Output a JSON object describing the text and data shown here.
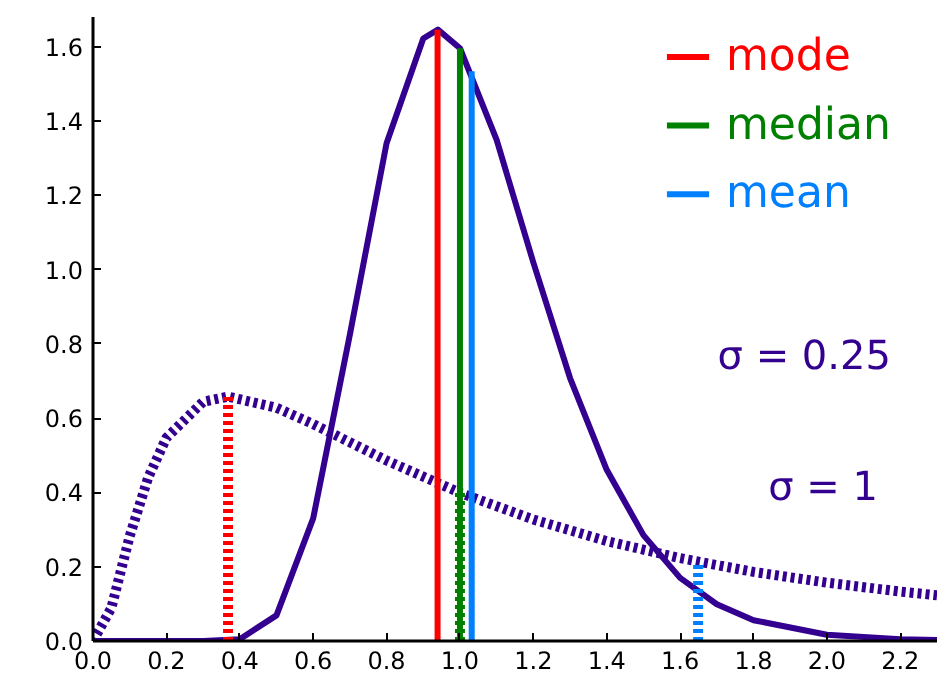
{
  "chart_data": {
    "type": "line",
    "xlim": [
      0,
      2.3
    ],
    "ylim": [
      0,
      1.68
    ],
    "xticks": [
      {
        "value": 0,
        "label": "0.0"
      },
      {
        "value": 0.2,
        "label": "0.2"
      },
      {
        "value": 0.4,
        "label": "0.4"
      },
      {
        "value": 0.6,
        "label": "0.6"
      },
      {
        "value": 0.8,
        "label": "0.8"
      },
      {
        "value": 1.0,
        "label": "1.0"
      },
      {
        "value": 1.2,
        "label": "1.2"
      },
      {
        "value": 1.4,
        "label": "1.4"
      },
      {
        "value": 1.6,
        "label": "1.6"
      },
      {
        "value": 1.8,
        "label": "1.8"
      },
      {
        "value": 2.0,
        "label": "2.0"
      },
      {
        "value": 2.2,
        "label": "2.2"
      }
    ],
    "yticks": [
      {
        "value": 0,
        "label": "0.0"
      },
      {
        "value": 0.2,
        "label": "0.2"
      },
      {
        "value": 0.4,
        "label": "0.4"
      },
      {
        "value": 0.6,
        "label": "0.6"
      },
      {
        "value": 0.8,
        "label": "0.8"
      },
      {
        "value": 1.0,
        "label": "1.0"
      },
      {
        "value": 1.2,
        "label": "1.2"
      },
      {
        "value": 1.4,
        "label": "1.4"
      },
      {
        "value": 1.6,
        "label": "1.6"
      }
    ],
    "grid": false,
    "legend": "top right",
    "series": [
      {
        "color": "#33008f",
        "line_style": "solid",
        "x": [
          0,
          0.3,
          0.4,
          0.5,
          0.6,
          0.7,
          0.8,
          0.9,
          0.94,
          1.0,
          1.1,
          1.2,
          1.3,
          1.4,
          1.5,
          1.6,
          1.7,
          1.8,
          2.0,
          2.2,
          2.3
        ],
        "values": [
          0,
          0,
          0.005,
          0.069,
          0.33,
          0.825,
          1.34,
          1.622,
          1.646,
          1.596,
          1.349,
          1.019,
          0.708,
          0.461,
          0.285,
          0.17,
          0.099,
          0.056,
          0.017,
          0.005,
          0.003
        ]
      },
      {
        "color": "#33008f",
        "line_style": "dotted",
        "x": [
          0,
          0.05,
          0.1,
          0.15,
          0.2,
          0.3,
          0.368,
          0.5,
          0.6,
          0.7,
          0.8,
          1.0,
          1.2,
          1.4,
          1.6,
          1.8,
          2.0,
          2.2,
          2.3
        ],
        "values": [
          0,
          0.089,
          0.282,
          0.439,
          0.547,
          0.644,
          0.658,
          0.628,
          0.584,
          0.535,
          0.486,
          0.399,
          0.327,
          0.269,
          0.223,
          0.186,
          0.157,
          0.133,
          0.123
        ]
      },
      {
        "name": "mode",
        "color": "#ff0000",
        "line_style": "solid",
        "x": [
          0.939,
          0.939
        ],
        "values": [
          0,
          1.646
        ]
      },
      {
        "name": "median",
        "color": "#008000",
        "line_style": "solid",
        "x": [
          1.0,
          1.0
        ],
        "values": [
          0,
          1.596
        ]
      },
      {
        "name": "mean",
        "color": "#0080ff",
        "line_style": "solid",
        "x": [
          1.032,
          1.032
        ],
        "values": [
          0,
          1.534
        ]
      },
      {
        "color": "#ff0000",
        "line_style": "dotted",
        "x": [
          0.368,
          0.368
        ],
        "values": [
          0,
          0.658
        ]
      },
      {
        "color": "#008000",
        "line_style": "dotted",
        "x": [
          1.0,
          1.0
        ],
        "values": [
          0,
          0.399
        ]
      },
      {
        "color": "#0080ff",
        "line_style": "dotted",
        "x": [
          1.649,
          1.649
        ],
        "values": [
          0,
          0.214
        ]
      }
    ],
    "annotations": [
      "σ = 0.25",
      "σ = 1"
    ]
  }
}
